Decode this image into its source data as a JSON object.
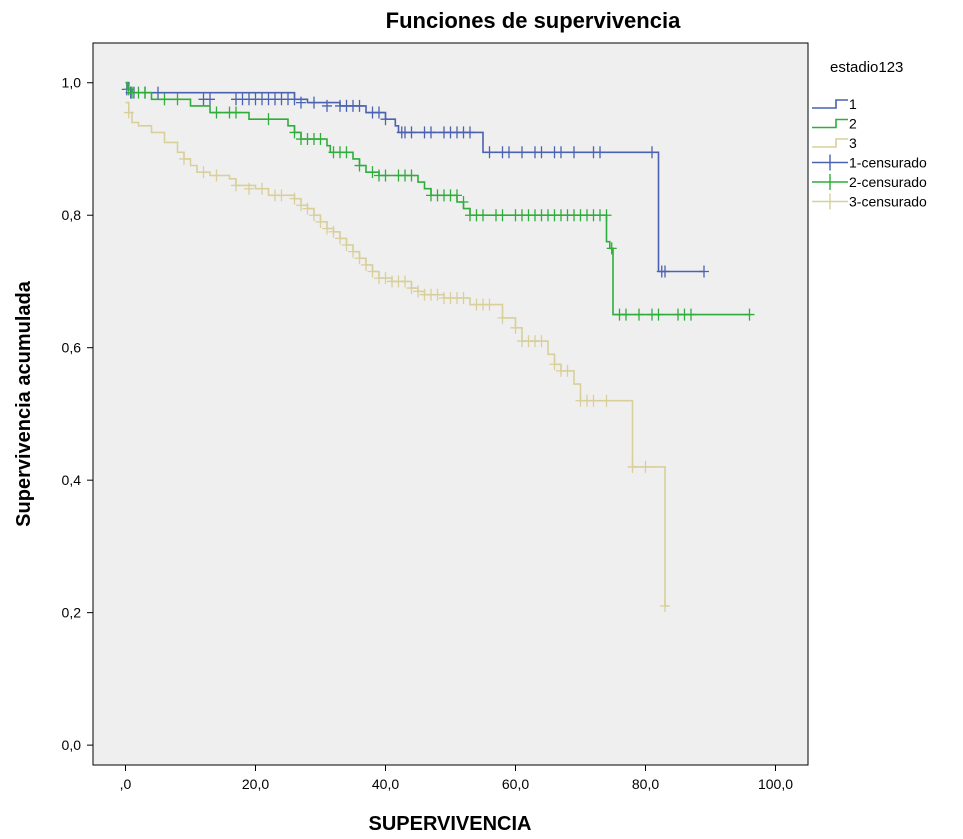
{
  "chart_data": {
    "type": "line",
    "title": "Funciones de supervivencia",
    "xlabel": "SUPERVIVENCIA",
    "ylabel": "Supervivencia acumulada",
    "xlim": [
      -5,
      105
    ],
    "ylim": [
      -0.03,
      1.06
    ],
    "xticks": [
      0,
      20,
      40,
      60,
      80,
      100
    ],
    "xtick_labels": [
      ",0",
      "20,0",
      "40,0",
      "60,0",
      "80,0",
      "100,0"
    ],
    "yticks": [
      0,
      0.2,
      0.4,
      0.6,
      0.8,
      1.0
    ],
    "ytick_labels": [
      "0,0",
      "0,2",
      "0,4",
      "0,6",
      "0,8",
      "1,0"
    ],
    "grid": false,
    "background": "#efefef",
    "legend": {
      "title": "estadio123",
      "placement": "right",
      "entries": [
        {
          "label": "1",
          "kind": "step",
          "color": "#4a62b0"
        },
        {
          "label": "2",
          "kind": "step",
          "color": "#2fad3a"
        },
        {
          "label": "3",
          "kind": "step",
          "color": "#d8cf9a"
        },
        {
          "label": "1-censurado",
          "kind": "censor",
          "color": "#4a62b0"
        },
        {
          "label": "2-censurado",
          "kind": "censor",
          "color": "#2fad3a"
        },
        {
          "label": "3-censurado",
          "kind": "censor",
          "color": "#d8cf9a"
        }
      ]
    },
    "series": [
      {
        "name": "1",
        "color": "#4a62b0",
        "steps": [
          [
            0,
            1.0
          ],
          [
            0.5,
            0.99
          ],
          [
            1,
            0.985
          ],
          [
            26,
            0.975
          ],
          [
            28,
            0.97
          ],
          [
            33,
            0.965
          ],
          [
            37,
            0.955
          ],
          [
            40,
            0.945
          ],
          [
            41.5,
            0.935
          ],
          [
            42,
            0.925
          ],
          [
            55,
            0.895
          ],
          [
            82,
            0.715
          ],
          [
            89,
            0.715
          ]
        ],
        "censored": [
          [
            0.2,
            0.99
          ],
          [
            0.8,
            0.985
          ],
          [
            1.3,
            0.985
          ],
          [
            3,
            0.985
          ],
          [
            5,
            0.985
          ],
          [
            12,
            0.975
          ],
          [
            13,
            0.975
          ],
          [
            17,
            0.975
          ],
          [
            18,
            0.975
          ],
          [
            19,
            0.975
          ],
          [
            20,
            0.975
          ],
          [
            21,
            0.975
          ],
          [
            22,
            0.975
          ],
          [
            23,
            0.975
          ],
          [
            24,
            0.975
          ],
          [
            25,
            0.975
          ],
          [
            26,
            0.975
          ],
          [
            27,
            0.97
          ],
          [
            29,
            0.97
          ],
          [
            31,
            0.965
          ],
          [
            33,
            0.965
          ],
          [
            34,
            0.965
          ],
          [
            35,
            0.965
          ],
          [
            36,
            0.965
          ],
          [
            38,
            0.955
          ],
          [
            39,
            0.955
          ],
          [
            40,
            0.945
          ],
          [
            42.5,
            0.925
          ],
          [
            43,
            0.925
          ],
          [
            44,
            0.925
          ],
          [
            46,
            0.925
          ],
          [
            47,
            0.925
          ],
          [
            49,
            0.925
          ],
          [
            50,
            0.925
          ],
          [
            51,
            0.925
          ],
          [
            52,
            0.925
          ],
          [
            53,
            0.925
          ],
          [
            56,
            0.895
          ],
          [
            58,
            0.895
          ],
          [
            59,
            0.895
          ],
          [
            61,
            0.895
          ],
          [
            63,
            0.895
          ],
          [
            64,
            0.895
          ],
          [
            66,
            0.895
          ],
          [
            67,
            0.895
          ],
          [
            69,
            0.895
          ],
          [
            72,
            0.895
          ],
          [
            73,
            0.895
          ],
          [
            81,
            0.895
          ],
          [
            82.5,
            0.715
          ],
          [
            83,
            0.715
          ],
          [
            89,
            0.715
          ]
        ]
      },
      {
        "name": "2",
        "color": "#2fad3a",
        "steps": [
          [
            0,
            1.0
          ],
          [
            0.3,
            0.99
          ],
          [
            1,
            0.985
          ],
          [
            4,
            0.975
          ],
          [
            10,
            0.965
          ],
          [
            13,
            0.955
          ],
          [
            19,
            0.945
          ],
          [
            25,
            0.935
          ],
          [
            26,
            0.925
          ],
          [
            27,
            0.915
          ],
          [
            31,
            0.905
          ],
          [
            31.5,
            0.895
          ],
          [
            35,
            0.885
          ],
          [
            36,
            0.875
          ],
          [
            37,
            0.865
          ],
          [
            39,
            0.86
          ],
          [
            45,
            0.85
          ],
          [
            46,
            0.84
          ],
          [
            47,
            0.83
          ],
          [
            51,
            0.82
          ],
          [
            52,
            0.81
          ],
          [
            53,
            0.8
          ],
          [
            74,
            0.76
          ],
          [
            74.5,
            0.75
          ],
          [
            75,
            0.65
          ],
          [
            96,
            0.65
          ]
        ],
        "censored": [
          [
            0.5,
            0.99
          ],
          [
            1,
            0.985
          ],
          [
            2,
            0.985
          ],
          [
            3,
            0.985
          ],
          [
            6,
            0.975
          ],
          [
            8,
            0.975
          ],
          [
            14,
            0.955
          ],
          [
            16,
            0.955
          ],
          [
            17,
            0.955
          ],
          [
            22,
            0.945
          ],
          [
            26,
            0.925
          ],
          [
            27,
            0.915
          ],
          [
            28,
            0.915
          ],
          [
            29,
            0.915
          ],
          [
            30,
            0.915
          ],
          [
            32,
            0.895
          ],
          [
            33,
            0.895
          ],
          [
            34,
            0.895
          ],
          [
            36,
            0.875
          ],
          [
            38,
            0.865
          ],
          [
            39,
            0.86
          ],
          [
            40,
            0.86
          ],
          [
            42,
            0.86
          ],
          [
            43,
            0.86
          ],
          [
            44,
            0.86
          ],
          [
            47,
            0.83
          ],
          [
            48,
            0.83
          ],
          [
            49,
            0.83
          ],
          [
            50,
            0.83
          ],
          [
            51,
            0.83
          ],
          [
            52,
            0.82
          ],
          [
            53,
            0.8
          ],
          [
            54,
            0.8
          ],
          [
            55,
            0.8
          ],
          [
            57,
            0.8
          ],
          [
            58,
            0.8
          ],
          [
            60,
            0.8
          ],
          [
            61,
            0.8
          ],
          [
            62,
            0.8
          ],
          [
            63,
            0.8
          ],
          [
            64,
            0.8
          ],
          [
            65,
            0.8
          ],
          [
            66,
            0.8
          ],
          [
            67,
            0.8
          ],
          [
            68,
            0.8
          ],
          [
            69,
            0.8
          ],
          [
            70,
            0.8
          ],
          [
            71,
            0.8
          ],
          [
            72,
            0.8
          ],
          [
            73,
            0.8
          ],
          [
            74,
            0.8
          ],
          [
            74.8,
            0.75
          ],
          [
            76,
            0.65
          ],
          [
            77,
            0.65
          ],
          [
            79,
            0.65
          ],
          [
            81,
            0.65
          ],
          [
            82,
            0.65
          ],
          [
            85,
            0.65
          ],
          [
            86,
            0.65
          ],
          [
            87,
            0.65
          ],
          [
            96,
            0.65
          ]
        ]
      },
      {
        "name": "3",
        "color": "#d8cf9a",
        "steps": [
          [
            0,
            0.97
          ],
          [
            0.5,
            0.955
          ],
          [
            1,
            0.94
          ],
          [
            2,
            0.935
          ],
          [
            4,
            0.925
          ],
          [
            6,
            0.91
          ],
          [
            8,
            0.895
          ],
          [
            9,
            0.885
          ],
          [
            10,
            0.875
          ],
          [
            11,
            0.865
          ],
          [
            13,
            0.86
          ],
          [
            16,
            0.855
          ],
          [
            17,
            0.845
          ],
          [
            20,
            0.84
          ],
          [
            22,
            0.83
          ],
          [
            26,
            0.825
          ],
          [
            27,
            0.815
          ],
          [
            28,
            0.81
          ],
          [
            29,
            0.8
          ],
          [
            30,
            0.79
          ],
          [
            31,
            0.78
          ],
          [
            32,
            0.775
          ],
          [
            33,
            0.765
          ],
          [
            34,
            0.755
          ],
          [
            35,
            0.745
          ],
          [
            36,
            0.735
          ],
          [
            37,
            0.725
          ],
          [
            38,
            0.715
          ],
          [
            39,
            0.705
          ],
          [
            41,
            0.7
          ],
          [
            44,
            0.69
          ],
          [
            45,
            0.685
          ],
          [
            46,
            0.68
          ],
          [
            49,
            0.675
          ],
          [
            53,
            0.665
          ],
          [
            58,
            0.645
          ],
          [
            60,
            0.63
          ],
          [
            61,
            0.61
          ],
          [
            65,
            0.59
          ],
          [
            66,
            0.575
          ],
          [
            67,
            0.565
          ],
          [
            69,
            0.545
          ],
          [
            70,
            0.52
          ],
          [
            78,
            0.42
          ],
          [
            83,
            0.21
          ],
          [
            83.5,
            0.21
          ]
        ],
        "censored": [
          [
            0.5,
            0.955
          ],
          [
            9,
            0.885
          ],
          [
            12,
            0.865
          ],
          [
            14,
            0.86
          ],
          [
            17,
            0.845
          ],
          [
            19,
            0.84
          ],
          [
            21,
            0.84
          ],
          [
            23,
            0.83
          ],
          [
            24,
            0.83
          ],
          [
            26,
            0.825
          ],
          [
            27,
            0.815
          ],
          [
            28,
            0.81
          ],
          [
            29,
            0.8
          ],
          [
            30,
            0.79
          ],
          [
            31,
            0.78
          ],
          [
            32,
            0.775
          ],
          [
            33,
            0.765
          ],
          [
            34,
            0.755
          ],
          [
            35,
            0.745
          ],
          [
            36,
            0.735
          ],
          [
            37,
            0.725
          ],
          [
            38,
            0.715
          ],
          [
            39,
            0.705
          ],
          [
            40,
            0.705
          ],
          [
            41,
            0.7
          ],
          [
            42,
            0.7
          ],
          [
            43,
            0.7
          ],
          [
            44,
            0.69
          ],
          [
            45,
            0.685
          ],
          [
            46,
            0.68
          ],
          [
            47,
            0.68
          ],
          [
            48,
            0.68
          ],
          [
            49,
            0.675
          ],
          [
            50,
            0.675
          ],
          [
            51,
            0.675
          ],
          [
            52,
            0.675
          ],
          [
            54,
            0.665
          ],
          [
            55,
            0.665
          ],
          [
            56,
            0.665
          ],
          [
            58,
            0.645
          ],
          [
            60,
            0.63
          ],
          [
            61,
            0.61
          ],
          [
            62,
            0.61
          ],
          [
            63,
            0.61
          ],
          [
            64,
            0.61
          ],
          [
            66,
            0.575
          ],
          [
            67,
            0.565
          ],
          [
            68,
            0.565
          ],
          [
            70,
            0.52
          ],
          [
            71,
            0.52
          ],
          [
            72,
            0.52
          ],
          [
            74,
            0.52
          ],
          [
            78,
            0.42
          ],
          [
            80,
            0.42
          ],
          [
            83,
            0.21
          ]
        ]
      }
    ]
  }
}
